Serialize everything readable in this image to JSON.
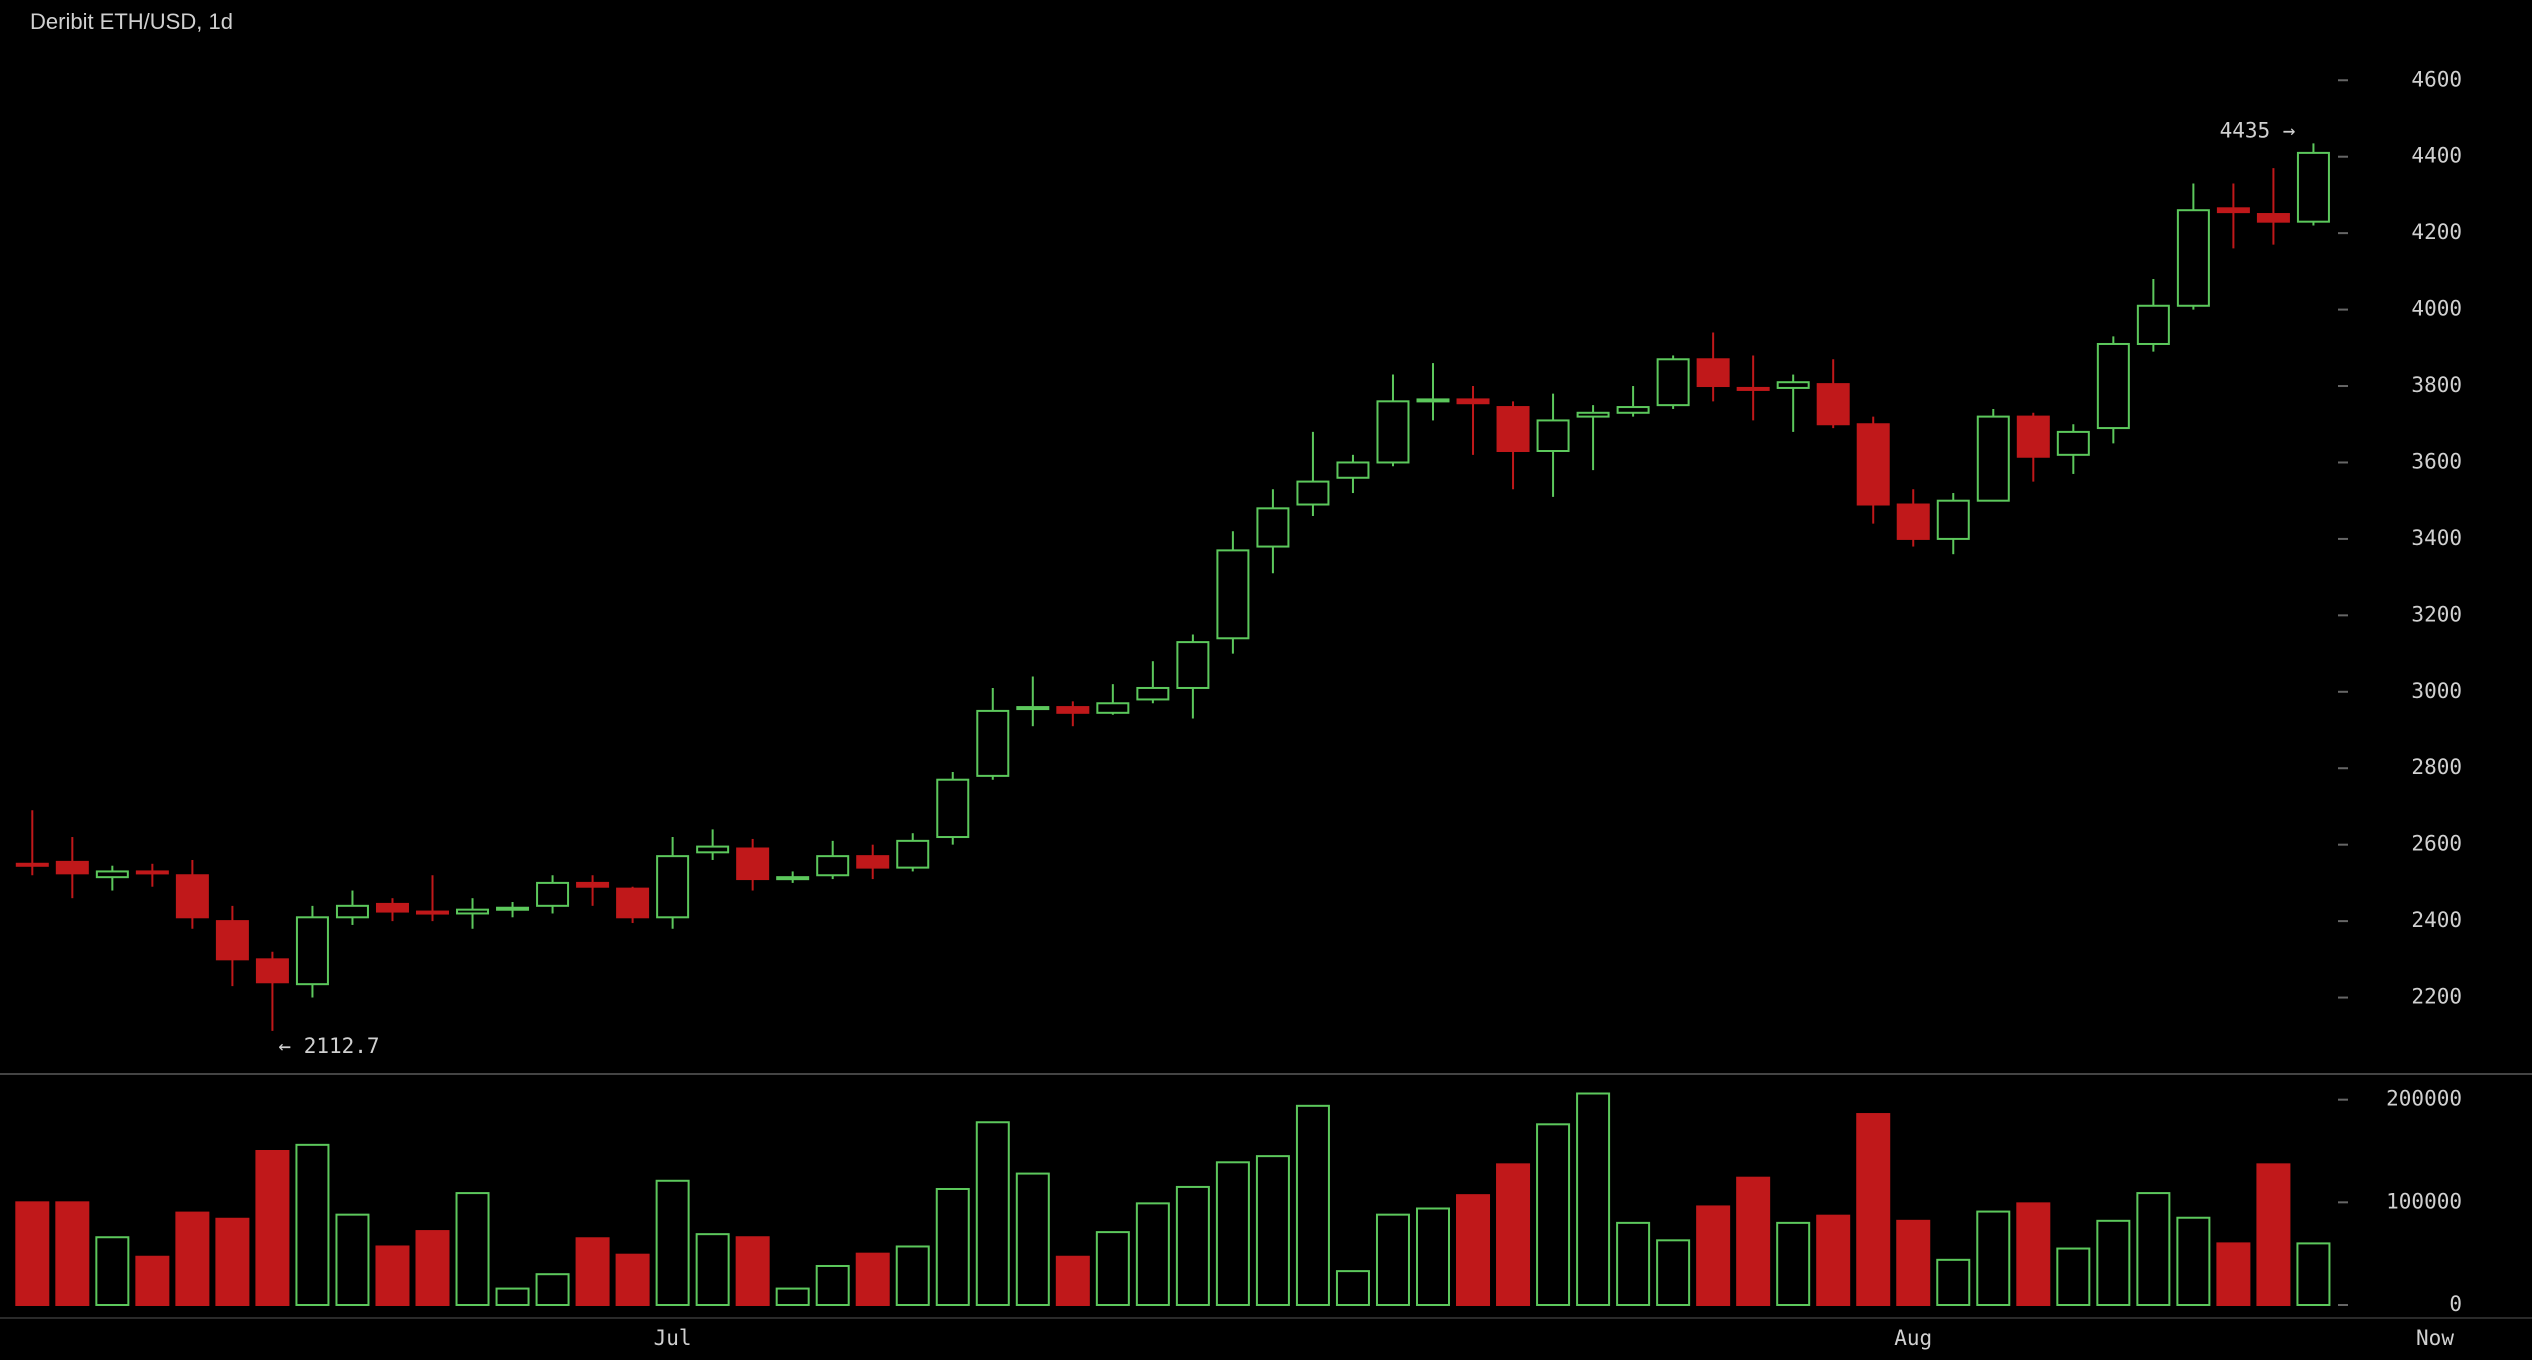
{
  "chart_data": [
    {
      "type": "candlestick",
      "title": "Deribit ETH/USD, 1d",
      "categories": [
        null,
        null,
        null,
        null,
        null,
        null,
        null,
        null,
        null,
        null,
        null,
        null,
        null,
        null,
        null,
        null,
        "Jul",
        null,
        null,
        null,
        null,
        null,
        null,
        null,
        null,
        null,
        null,
        null,
        null,
        null,
        null,
        null,
        null,
        null,
        null,
        null,
        null,
        null,
        null,
        null,
        null,
        null,
        null,
        null,
        null,
        null,
        null,
        "Aug",
        null,
        null,
        null,
        null,
        null,
        null,
        null,
        null,
        null,
        null
      ],
      "x_end_label": "Now",
      "open": [
        2550,
        2555,
        2515,
        2530,
        2520,
        2400,
        2300,
        2235,
        2410,
        2445,
        2425,
        2420,
        2430,
        2440,
        2500,
        2485,
        2410,
        2580,
        2590,
        2510,
        2520,
        2570,
        2540,
        2620,
        2780,
        2955,
        2960,
        2945,
        2980,
        3010,
        3140,
        3380,
        3490,
        3560,
        3600,
        3760,
        3765,
        3745,
        3630,
        3720,
        3730,
        3750,
        3870,
        3795,
        3795,
        3805,
        3700,
        3490,
        3400,
        3500,
        3720,
        3620,
        3690,
        3910,
        4010,
        4265,
        4250,
        4230
      ],
      "high": [
        2690,
        2620,
        2545,
        2550,
        2560,
        2440,
        2320,
        2440,
        2480,
        2460,
        2520,
        2460,
        2450,
        2520,
        2520,
        2490,
        2620,
        2640,
        2615,
        2530,
        2610,
        2600,
        2630,
        2790,
        3010,
        3040,
        2975,
        3020,
        3080,
        3150,
        3420,
        3530,
        3680,
        3620,
        3830,
        3860,
        3800,
        3760,
        3780,
        3750,
        3800,
        3880,
        3940,
        3880,
        3830,
        3870,
        3720,
        3530,
        3520,
        3740,
        3730,
        3700,
        3930,
        4080,
        4330,
        4330,
        4370,
        4435
      ],
      "low": [
        2520,
        2460,
        2480,
        2490,
        2380,
        2230,
        2112.7,
        2200,
        2390,
        2400,
        2400,
        2380,
        2410,
        2420,
        2440,
        2395,
        2380,
        2560,
        2480,
        2500,
        2510,
        2510,
        2530,
        2600,
        2770,
        2910,
        2910,
        2940,
        2970,
        2930,
        3100,
        3310,
        3460,
        3520,
        3590,
        3710,
        3620,
        3530,
        3510,
        3580,
        3720,
        3740,
        3760,
        3710,
        3680,
        3690,
        3440,
        3380,
        3360,
        3500,
        3550,
        3570,
        3650,
        3890,
        4000,
        4160,
        4170,
        4220
      ],
      "close": [
        2545,
        2525,
        2530,
        2525,
        2410,
        2300,
        2240,
        2410,
        2440,
        2425,
        2420,
        2430,
        2435,
        2500,
        2490,
        2410,
        2570,
        2595,
        2510,
        2515,
        2570,
        2540,
        2610,
        2770,
        2950,
        2960,
        2945,
        2970,
        3010,
        3130,
        3370,
        3480,
        3550,
        3600,
        3760,
        3765,
        3755,
        3630,
        3710,
        3730,
        3745,
        3870,
        3800,
        3790,
        3810,
        3700,
        3490,
        3400,
        3500,
        3720,
        3615,
        3680,
        3910,
        4010,
        4260,
        4255,
        4230,
        4410
      ],
      "up_color": "#5cc85c",
      "down_color": "#c0181a",
      "ylim": [
        2000,
        4810
      ],
      "yticks": [
        2200,
        2400,
        2600,
        2800,
        3000,
        3200,
        3400,
        3600,
        3800,
        4000,
        4200,
        4400,
        4600
      ],
      "annotations": [
        {
          "value": 4435,
          "label": "4435 →"
        },
        {
          "value": 2112.7,
          "label": "← 2112.7"
        }
      ]
    },
    {
      "type": "bar",
      "values": [
        100000,
        100000,
        66000,
        47000,
        90000,
        84000,
        150000,
        156000,
        88000,
        57000,
        72000,
        109000,
        16000,
        30000,
        65000,
        49000,
        121000,
        69000,
        66000,
        16000,
        38000,
        50000,
        57000,
        113000,
        178000,
        128000,
        47000,
        71000,
        99000,
        115000,
        139000,
        145000,
        194000,
        33000,
        88000,
        94000,
        107000,
        137000,
        176000,
        206000,
        80000,
        63000,
        96000,
        124000,
        80000,
        87000,
        186000,
        82000,
        44000,
        91000,
        99000,
        55000,
        82000,
        109000,
        85000,
        60000,
        137000,
        60000
      ],
      "ylim": [
        0,
        225000
      ],
      "yticks": [
        0,
        100000,
        200000
      ]
    }
  ]
}
